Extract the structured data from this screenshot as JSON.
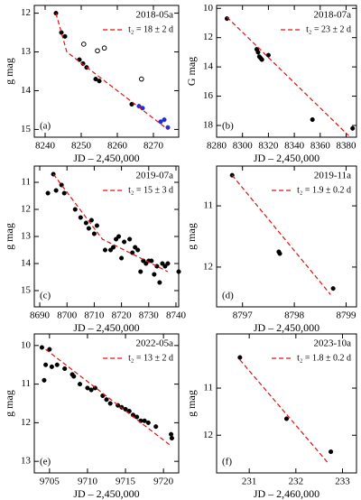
{
  "chart_data": [
    {
      "type": "scatter",
      "title": "2018-05a",
      "label": "(a)",
      "xlabel": "JD – 2,450,000",
      "ylabel": "g mag",
      "xlim": [
        8237,
        8277
      ],
      "xticks": [
        8240,
        8250,
        8260,
        8270
      ],
      "ylim": [
        15.2,
        11.8
      ],
      "yticks": [
        12,
        13,
        14,
        15
      ],
      "series": [
        {
          "color": "#000000",
          "marker": "filled",
          "x": [
            8243,
            8244.5,
            8245.5,
            8249.5,
            8250.5,
            8251.5,
            8254,
            8255,
            8264
          ],
          "y": [
            12.0,
            12.5,
            12.6,
            13.2,
            13.3,
            13.4,
            13.7,
            13.75,
            14.35
          ]
        },
        {
          "color": "#1f2fd6",
          "marker": "filled",
          "x": [
            8266,
            8267,
            8272,
            8273,
            8274
          ],
          "y": [
            14.4,
            14.45,
            14.8,
            14.75,
            14.95
          ]
        },
        {
          "color": "#000000",
          "marker": "open",
          "x": [
            8250.7,
            8254.5,
            8256.4,
            8266.7
          ],
          "y": [
            12.8,
            12.97,
            12.9,
            13.7
          ]
        },
        {
          "name": "t₂ = 18 ± 2 d",
          "color": "#e01010",
          "style": "dashed",
          "x": [
            8243,
            8246,
            8274
          ],
          "y": [
            12.0,
            13.0,
            15.0
          ]
        }
      ]
    },
    {
      "type": "scatter",
      "title": "2018-07a",
      "label": "(b)",
      "xlabel": "JD – 2,450,000",
      "ylabel": "G mag",
      "xlim": [
        8280,
        8388
      ],
      "xticks": [
        8280,
        8300,
        8320,
        8340,
        8360,
        8380
      ],
      "ylim": [
        18.8,
        9.8
      ],
      "yticks": [
        10,
        12,
        14,
        16,
        18
      ],
      "series": [
        {
          "color": "#000000",
          "marker": "filled",
          "x": [
            8288,
            8311,
            8312,
            8313,
            8314,
            8315,
            8320,
            8354,
            8385
          ],
          "y": [
            10.7,
            12.8,
            13.0,
            13.3,
            13.4,
            13.5,
            13.2,
            17.6,
            18.2
          ]
        },
        {
          "name": "t₂ = 23 ± 2 d",
          "color": "#e01010",
          "style": "dashed",
          "x": [
            8288,
            8382
          ],
          "y": [
            10.6,
            18.7
          ]
        }
      ]
    },
    {
      "type": "scatter",
      "title": "2019-07a",
      "label": "(c)",
      "xlabel": "JD – 2,450,000",
      "ylabel": "g mag",
      "xlim": [
        8688,
        8741
      ],
      "xticks": [
        8690,
        8700,
        8710,
        8720,
        8730,
        8740
      ],
      "ylim": [
        15.6,
        10.4
      ],
      "yticks": [
        11,
        12,
        13,
        14,
        15
      ],
      "series": [
        {
          "color": "#000000",
          "marker": "filled",
          "x": [
            8693,
            8695,
            8696,
            8698,
            8699,
            8703,
            8705,
            8707,
            8708,
            8709,
            8710,
            8711,
            8714,
            8716,
            8717,
            8718,
            8719,
            8720,
            8721,
            8723,
            8724,
            8725,
            8726,
            8727,
            8728,
            8729,
            8730,
            8731,
            8732,
            8733,
            8734,
            8735,
            8736,
            8737,
            8741
          ],
          "y": [
            11.4,
            10.7,
            11.3,
            11.1,
            11.4,
            12.0,
            12.3,
            12.5,
            12.7,
            12.4,
            12.9,
            12.6,
            13.5,
            13.5,
            13.4,
            13.1,
            13.0,
            13.8,
            13.2,
            13.1,
            13.6,
            13.4,
            13.5,
            14.3,
            13.9,
            14.0,
            13.9,
            13.9,
            14.4,
            14.1,
            14.7,
            14.0,
            14.1,
            14.0,
            14.3
          ]
        },
        {
          "name": "t₂ = 15 ± 3 d",
          "color": "#e01010",
          "style": "dashed",
          "x": [
            8695,
            8713,
            8737
          ],
          "y": [
            10.7,
            13.1,
            14.3
          ]
        }
      ]
    },
    {
      "type": "scatter",
      "title": "2019-11a",
      "label": "(d)",
      "xlabel": "JD – 2,450,000",
      "ylabel": "g mag",
      "xlim": [
        8796.5,
        8799.2
      ],
      "xticks": [
        8797,
        8798,
        8799
      ],
      "ylim": [
        12.65,
        10.35
      ],
      "yticks": [
        11,
        12
      ],
      "series": [
        {
          "color": "#000000",
          "marker": "filled",
          "x": [
            8796.8,
            8797.7,
            8797.72,
            8798.75
          ],
          "y": [
            10.5,
            11.75,
            11.78,
            12.35
          ]
        },
        {
          "name": "t₂ = 1.9 ± 0.2 d",
          "color": "#e01010",
          "style": "dashed",
          "x": [
            8796.8,
            8798.7
          ],
          "y": [
            10.5,
            12.45
          ]
        }
      ]
    },
    {
      "type": "scatter",
      "title": "2022-05a",
      "label": "(e)",
      "xlabel": "JD – 2,450,000",
      "ylabel": "g mag",
      "xlim": [
        9703,
        9722
      ],
      "xticks": [
        9705,
        9710,
        9715,
        9720
      ],
      "ylim": [
        13.3,
        9.7
      ],
      "yticks": [
        10,
        11,
        12,
        13
      ],
      "series": [
        {
          "color": "#000000",
          "marker": "filled",
          "x": [
            9704,
            9704.3,
            9704.5,
            9705,
            9705.3,
            9706,
            9707,
            9708,
            9708.2,
            9709,
            9710,
            9710.5,
            9711,
            9712,
            9712.5,
            9713,
            9714,
            9714.5,
            9715,
            9715.5,
            9716,
            9716.5,
            9717,
            9717.5,
            9718,
            9719,
            9721,
            9721.1
          ],
          "y": [
            10.05,
            10.9,
            10.5,
            10.1,
            10.55,
            10.5,
            10.6,
            10.75,
            10.8,
            11.0,
            11.1,
            11.15,
            11.1,
            11.3,
            11.4,
            11.5,
            11.55,
            11.6,
            11.65,
            11.7,
            11.8,
            11.85,
            11.95,
            11.95,
            12.0,
            12.1,
            12.3,
            12.4
          ]
        },
        {
          "name": "t₂ = 13 ± 2 d",
          "color": "#e01010",
          "style": "dashed",
          "x": [
            9704.5,
            9721
          ],
          "y": [
            10.1,
            12.6
          ]
        }
      ]
    },
    {
      "type": "scatter",
      "title": "2023-10a",
      "label": "(f)",
      "xlabel": "JD – 2,460,000",
      "ylabel": "g mag",
      "xlim": [
        230.3,
        233.3
      ],
      "xticks": [
        231,
        232,
        233
      ],
      "ylim": [
        12.8,
        9.85
      ],
      "yticks": [
        11,
        12
      ],
      "series": [
        {
          "color": "#000000",
          "marker": "filled",
          "x": [
            230.8,
            231.8,
            232.75
          ],
          "y": [
            10.35,
            11.65,
            12.35
          ]
        },
        {
          "name": "t₂ = 1.8 ± 0.2 d",
          "color": "#e01010",
          "style": "dashed",
          "x": [
            230.8,
            232.7
          ],
          "y": [
            10.4,
            12.6
          ]
        }
      ]
    }
  ]
}
